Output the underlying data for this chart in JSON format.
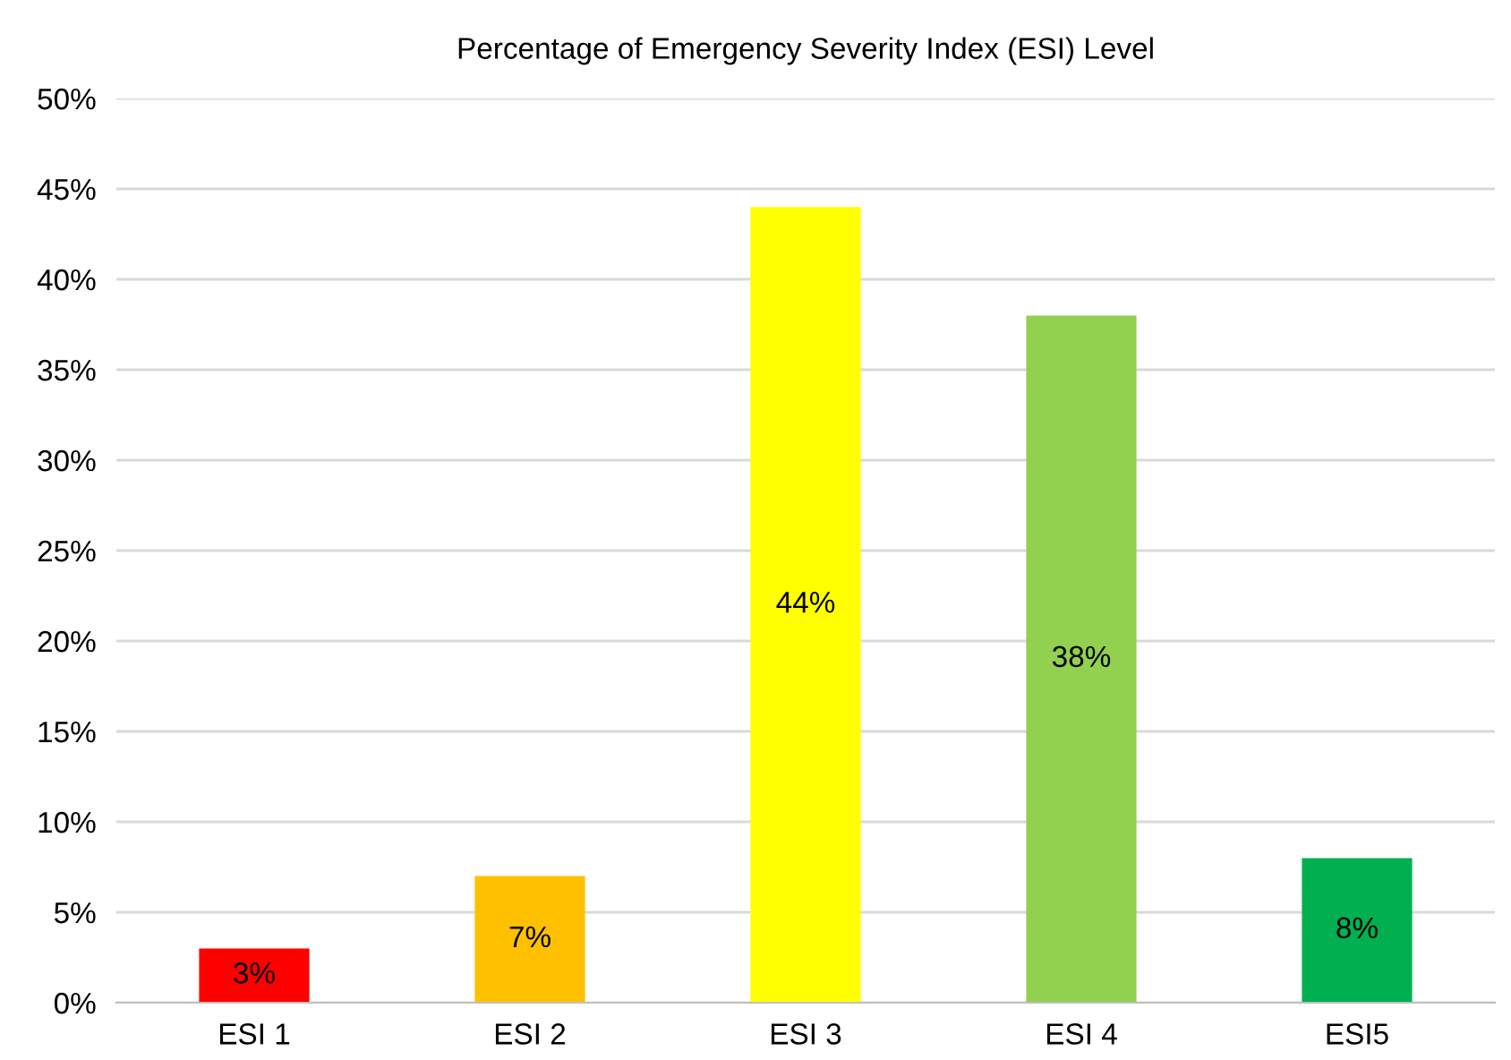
{
  "chart_data": {
    "type": "bar",
    "title": "Percentage of Emergency Severity Index (ESI) Level",
    "categories": [
      "ESI 1",
      "ESI 2",
      "ESI 3",
      "ESI 4",
      "ESI5"
    ],
    "values": [
      3,
      7,
      44,
      38,
      8
    ],
    "colors": [
      "#ff0000",
      "#ffc000",
      "#ffff00",
      "#92d050",
      "#00b050"
    ],
    "value_labels": [
      "3%",
      "7%",
      "44%",
      "38%",
      "8%"
    ],
    "ylim": [
      0,
      50
    ],
    "yticks": [
      {
        "value": 0,
        "label": "0%"
      },
      {
        "value": 5,
        "label": "5%"
      },
      {
        "value": 10,
        "label": "10%"
      },
      {
        "value": 15,
        "label": "15%"
      },
      {
        "value": 20,
        "label": "20%"
      },
      {
        "value": 25,
        "label": "25%"
      },
      {
        "value": 30,
        "label": "30%"
      },
      {
        "value": 35,
        "label": "35%"
      },
      {
        "value": 40,
        "label": "40%"
      },
      {
        "value": 45,
        "label": "45%"
      },
      {
        "value": 50,
        "label": "50%"
      }
    ],
    "grid": "y",
    "legend": false
  }
}
